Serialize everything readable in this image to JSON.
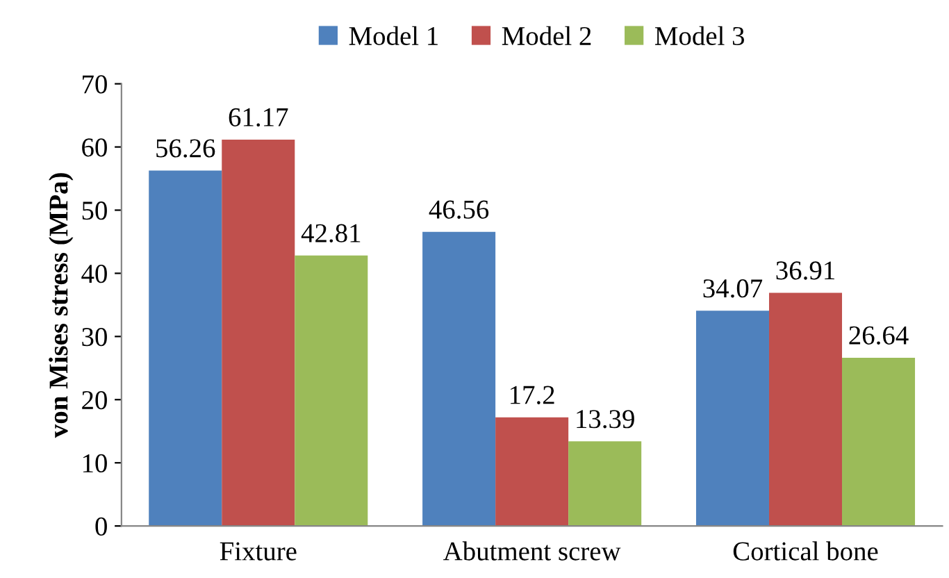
{
  "chart_data": {
    "type": "bar",
    "ylabel": "von Mises stress (MPa)",
    "categories": [
      "Fixture",
      "Abutment screw",
      "Cortical bone"
    ],
    "series": [
      {
        "name": "Model 1",
        "color": "#4f81bd",
        "values": [
          56.26,
          46.56,
          34.07
        ]
      },
      {
        "name": "Model 2",
        "color": "#c0504d",
        "values": [
          61.17,
          17.2,
          36.91
        ]
      },
      {
        "name": "Model 3",
        "color": "#9bbb59",
        "values": [
          42.81,
          13.39,
          26.64
        ]
      }
    ],
    "ylim": [
      0,
      70
    ],
    "yticks": [
      0,
      10,
      20,
      30,
      40,
      50,
      60,
      70
    ],
    "data_labels": true,
    "legend": "top",
    "grid": false
  }
}
